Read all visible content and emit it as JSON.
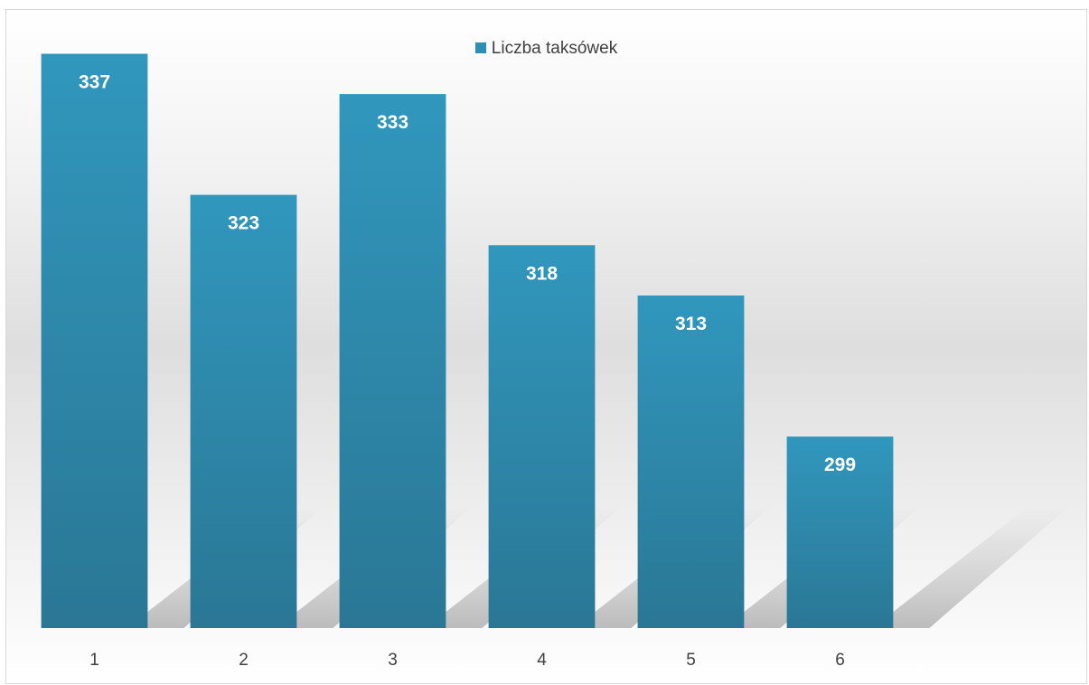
{
  "chart_data": {
    "type": "bar",
    "categories": [
      "1",
      "2",
      "3",
      "4",
      "5",
      "6"
    ],
    "series": [
      {
        "name": "Liczba taksówek",
        "values": [
          337,
          323,
          333,
          318,
          313,
          299
        ]
      }
    ],
    "title": "",
    "xlabel": "",
    "ylabel": "",
    "ylim": [
      280,
      340
    ],
    "grid": false,
    "legend_position": "top",
    "data_labels": true,
    "colors": {
      "bar": "#2f8fb2",
      "bar_dark": "#2a7895",
      "label": "#ffffff"
    }
  }
}
